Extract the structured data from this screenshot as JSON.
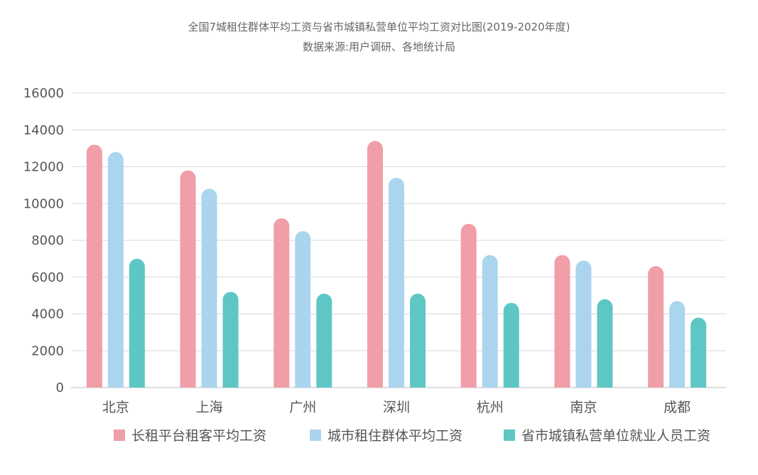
{
  "chart_data": {
    "type": "bar",
    "title": "全国7城租住群体平均工资与省市城镇私营单位平均工资对比图(2019-2020年度)",
    "subtitle": "数据来源:用户调研、各地统计局",
    "xlabel": "",
    "ylabel": "",
    "ylim": [
      0,
      16000
    ],
    "yticks": [
      "0",
      "2000",
      "4000",
      "6000",
      "8000",
      "10000",
      "12000",
      "14000",
      "16000"
    ],
    "grid": true,
    "legend_position": "bottom",
    "categories": [
      "北京",
      "上海",
      "广州",
      "深圳",
      "杭州",
      "南京",
      "成都"
    ],
    "series": [
      {
        "name": "长租平台租客平均工资",
        "color": "#f09ea8",
        "values": [
          13200,
          11800,
          9200,
          13400,
          8900,
          7200,
          6600
        ]
      },
      {
        "name": "城市租住群体平均工资",
        "color": "#abd5ee",
        "values": [
          12800,
          10800,
          8500,
          11400,
          7200,
          6900,
          4700
        ]
      },
      {
        "name": "省市城镇私营单位就业人员工资",
        "color": "#5ec7c5",
        "values": [
          7000,
          5200,
          5100,
          5100,
          4600,
          4800,
          3800
        ]
      }
    ]
  }
}
